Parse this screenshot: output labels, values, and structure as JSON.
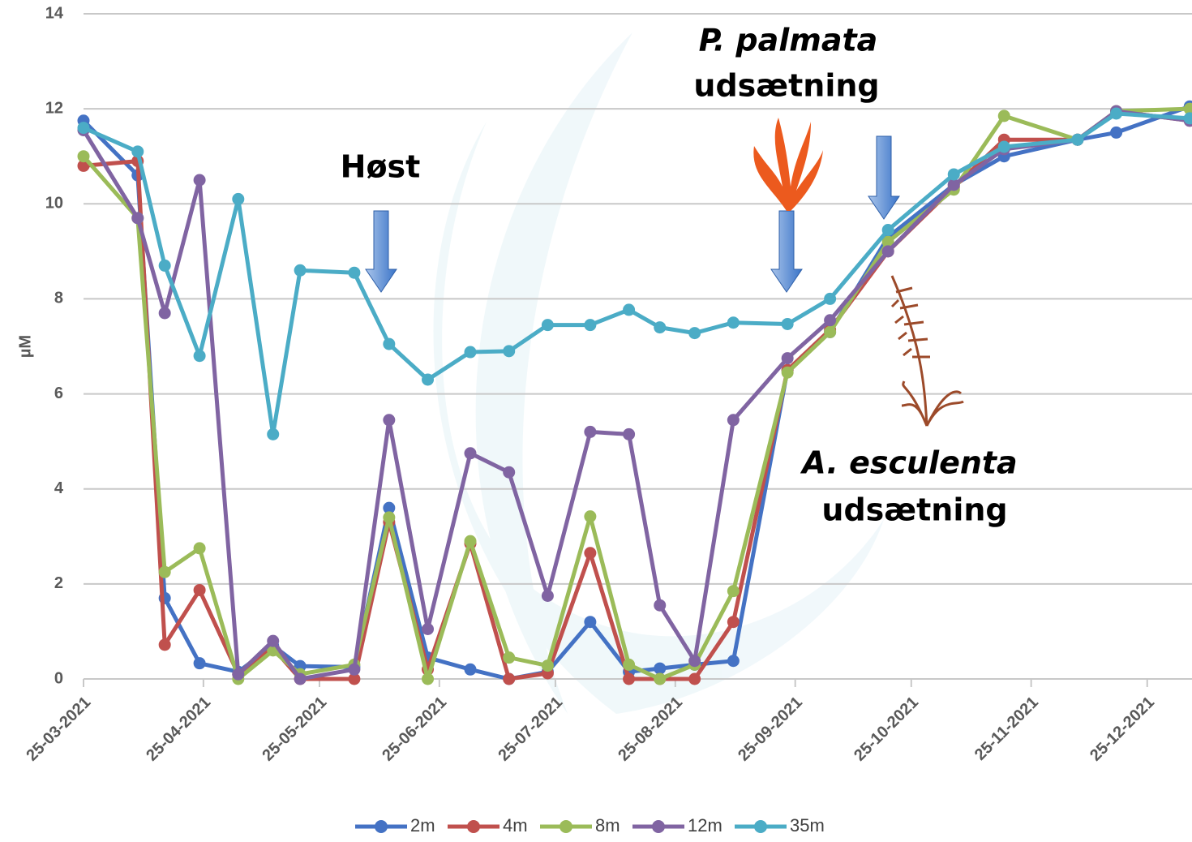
{
  "chart_data": {
    "type": "line",
    "y_label": "µM",
    "x": [
      "2021-03-25",
      "2021-04-08",
      "2021-04-15",
      "2021-04-24",
      "2021-05-04",
      "2021-05-13",
      "2021-05-20",
      "2021-06-03",
      "2021-06-12",
      "2021-06-22",
      "2021-07-03",
      "2021-07-13",
      "2021-07-23",
      "2021-08-03",
      "2021-08-13",
      "2021-08-21",
      "2021-08-30",
      "2021-09-09",
      "2021-09-23",
      "2021-10-04",
      "2021-10-19",
      "2021-11-05",
      "2021-11-18",
      "2021-12-07",
      "2021-12-17",
      "2022-01-05"
    ],
    "series": [
      {
        "name": "2m",
        "color": "#4472c4",
        "values": [
          11.75,
          10.6,
          1.7,
          0.33,
          0.15,
          0.7,
          0.27,
          0.25,
          3.6,
          0.45,
          0.2,
          0.0,
          0.15,
          1.2,
          0.15,
          0.22,
          0.3,
          0.38,
          6.5,
          7.3,
          9.3,
          10.4,
          11.0,
          11.35,
          11.5,
          12.05
        ]
      },
      {
        "name": "4m",
        "color": "#c0504d",
        "values": [
          10.8,
          10.9,
          0.72,
          1.87,
          0.1,
          0.65,
          0.0,
          0.0,
          3.3,
          0.2,
          2.85,
          0.0,
          0.12,
          2.65,
          0.0,
          0.0,
          0.0,
          1.2,
          6.5,
          7.35,
          9.0,
          10.35,
          11.35,
          11.35,
          11.95,
          11.75
        ]
      },
      {
        "name": "8m",
        "color": "#9bbb59",
        "values": [
          11.0,
          9.7,
          2.25,
          2.75,
          0.0,
          0.6,
          0.1,
          0.3,
          3.4,
          0.0,
          2.9,
          0.45,
          0.28,
          3.42,
          0.3,
          0.0,
          0.3,
          1.85,
          6.45,
          7.3,
          9.2,
          10.3,
          11.85,
          11.35,
          11.95,
          12.0
        ]
      },
      {
        "name": "12m",
        "color": "#8064a2",
        "values": [
          11.55,
          9.7,
          7.7,
          10.5,
          0.1,
          0.8,
          0.0,
          0.2,
          5.45,
          1.05,
          4.75,
          4.35,
          1.75,
          5.2,
          5.15,
          1.55,
          0.38,
          5.45,
          6.75,
          7.55,
          9.0,
          10.4,
          11.15,
          11.35,
          11.95,
          11.75
        ]
      },
      {
        "name": "35m",
        "color": "#4bacc6",
        "values": [
          11.6,
          11.1,
          8.7,
          6.8,
          10.1,
          5.15,
          8.6,
          8.55,
          7.05,
          6.3,
          6.88,
          6.9,
          7.45,
          7.45,
          7.77,
          7.4,
          7.28,
          7.5,
          7.47,
          8.0,
          9.45,
          10.62,
          11.2,
          11.35,
          11.9,
          11.8
        ]
      }
    ],
    "xlim": [
      "2021-03-25",
      "2022-01-06"
    ],
    "xticks": [
      {
        "value": "2021-03-25",
        "label": "25-03-2021"
      },
      {
        "value": "2021-04-25",
        "label": "25-04-2021"
      },
      {
        "value": "2021-05-25",
        "label": "25-05-2021"
      },
      {
        "value": "2021-06-25",
        "label": "25-06-2021"
      },
      {
        "value": "2021-07-25",
        "label": "25-07-2021"
      },
      {
        "value": "2021-08-25",
        "label": "25-08-2021"
      },
      {
        "value": "2021-09-25",
        "label": "25-09-2021"
      },
      {
        "value": "2021-10-25",
        "label": "25-10-2021"
      },
      {
        "value": "2021-11-25",
        "label": "25-11-2021"
      },
      {
        "value": "2021-12-25",
        "label": "25-12-2021"
      }
    ],
    "ylim": [
      0,
      14
    ],
    "yticks": [
      0,
      2,
      4,
      6,
      8,
      10,
      12,
      14
    ],
    "grid": true,
    "legend": "bottom",
    "annotations": {
      "harvest": "Høst",
      "palmata_name": "P. palmata",
      "palmata_text": "udsætning",
      "esculenta_name": "A. esculenta",
      "esculenta_text": "udsætning"
    }
  }
}
